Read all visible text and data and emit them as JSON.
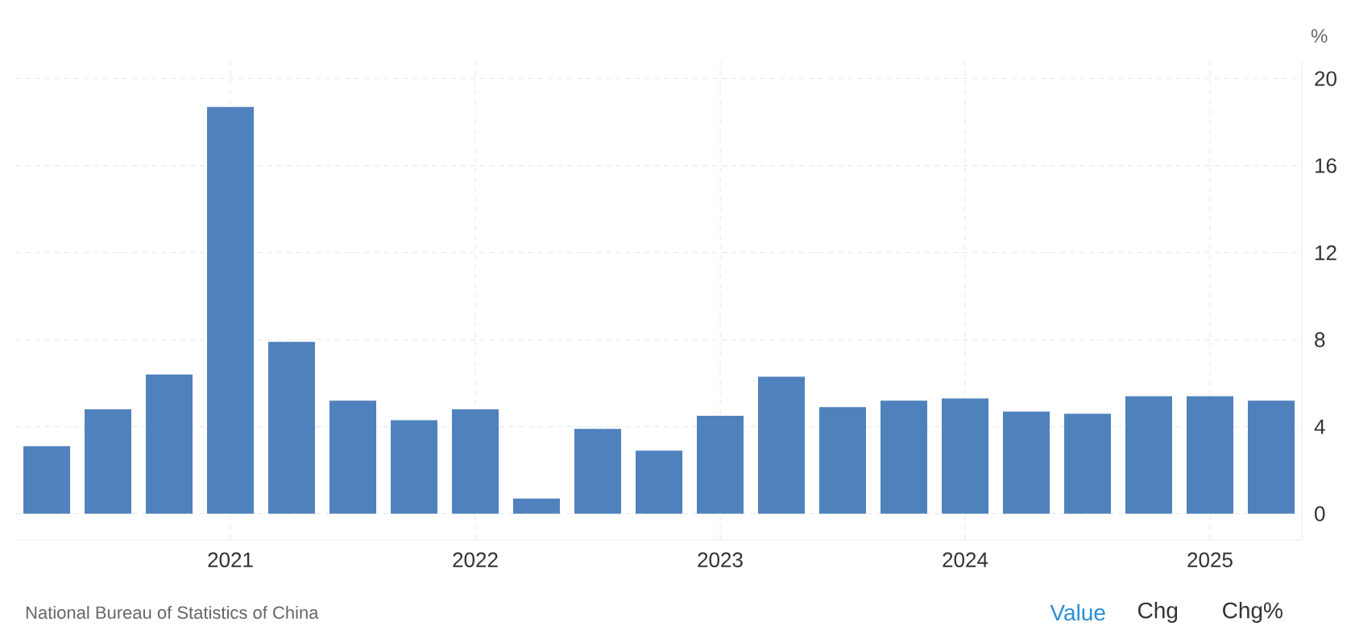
{
  "chart_data": {
    "type": "bar",
    "ylabel": "%",
    "categories": [
      null,
      null,
      null,
      "2021",
      null,
      null,
      null,
      "2022",
      null,
      null,
      null,
      "2023",
      null,
      null,
      null,
      "2024",
      null,
      null,
      null,
      "2025",
      null
    ],
    "values": [
      3.1,
      4.8,
      6.4,
      18.7,
      7.9,
      5.2,
      4.3,
      4.8,
      0.7,
      3.9,
      2.9,
      4.5,
      6.3,
      4.9,
      5.2,
      5.3,
      4.7,
      4.6,
      5.4,
      5.4,
      5.2
    ],
    "color": "#4f81bd",
    "ylim": [
      -1.2,
      20.8
    ],
    "yticks": [
      0,
      4,
      8,
      12,
      16,
      20
    ],
    "grid": true,
    "annotations": [
      "National Bureau of Statistics of China",
      "Value",
      "Chg",
      "Chg%"
    ]
  }
}
